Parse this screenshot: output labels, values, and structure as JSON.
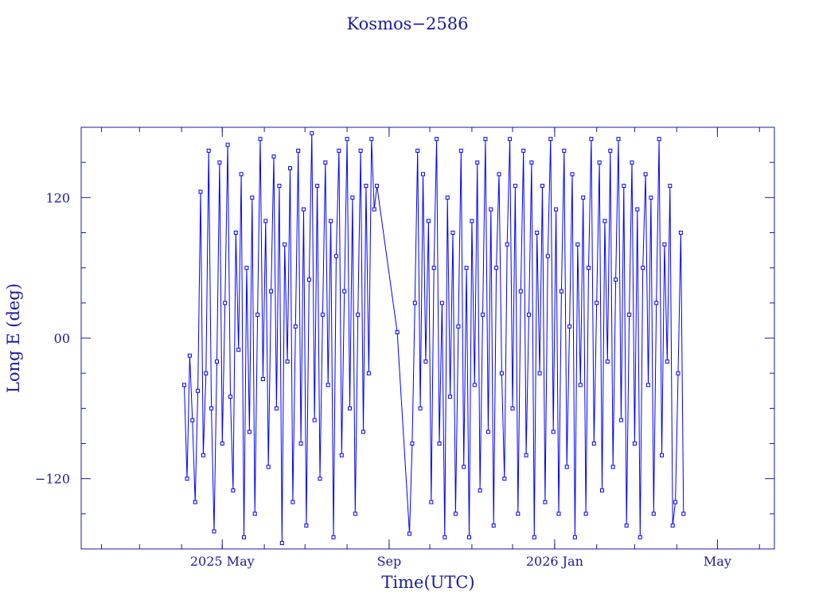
{
  "chart_data": {
    "type": "line",
    "title": "Kosmos−2586",
    "xlabel": "Time(UTC)",
    "ylabel": "Long E (deg)",
    "x_unit": "date",
    "xlim": [
      "2025-01-17",
      "2026-06-12"
    ],
    "ylim": [
      -180,
      180
    ],
    "x_ticks": [
      {
        "date": "2025-05-01",
        "label": "2025 May"
      },
      {
        "date": "2025-09-01",
        "label": "Sep"
      },
      {
        "date": "2026-01-01",
        "label": "2026 Jan"
      },
      {
        "date": "2026-05-01",
        "label": "May"
      }
    ],
    "y_ticks": [
      {
        "value": 120,
        "label": "120"
      },
      {
        "value": 0,
        "label": "00"
      },
      {
        "value": -120,
        "label": "−120"
      }
    ],
    "grid": false,
    "legend": "none",
    "colors": {
      "series": "#0000ff",
      "axes": "#1a1a9c",
      "text": "#1a1a9c"
    },
    "series": [
      {
        "marker": "square",
        "x": [
          "2025-04-03",
          "2025-04-05",
          "2025-04-07",
          "2025-04-09",
          "2025-04-11",
          "2025-04-13",
          "2025-04-15",
          "2025-04-17",
          "2025-04-19",
          "2025-04-21",
          "2025-04-23",
          "2025-04-25",
          "2025-04-27",
          "2025-04-29",
          "2025-05-01",
          "2025-05-03",
          "2025-05-05",
          "2025-05-07",
          "2025-05-09",
          "2025-05-11",
          "2025-05-13",
          "2025-05-15",
          "2025-05-17",
          "2025-05-19",
          "2025-05-21",
          "2025-05-23",
          "2025-05-25",
          "2025-05-27",
          "2025-05-29",
          "2025-05-31",
          "2025-06-02",
          "2025-06-04",
          "2025-06-06",
          "2025-06-08",
          "2025-06-10",
          "2025-06-12",
          "2025-06-14",
          "2025-06-16",
          "2025-06-18",
          "2025-06-20",
          "2025-06-22",
          "2025-06-24",
          "2025-06-26",
          "2025-06-28",
          "2025-06-30",
          "2025-07-02",
          "2025-07-04",
          "2025-07-06",
          "2025-07-08",
          "2025-07-10",
          "2025-07-12",
          "2025-07-14",
          "2025-07-16",
          "2025-07-18",
          "2025-07-20",
          "2025-07-22",
          "2025-07-24",
          "2025-07-26",
          "2025-07-28",
          "2025-07-30",
          "2025-08-01",
          "2025-08-03",
          "2025-08-05",
          "2025-08-07",
          "2025-08-09",
          "2025-08-11",
          "2025-08-13",
          "2025-08-15",
          "2025-08-17",
          "2025-08-19",
          "2025-08-21",
          "2025-08-23",
          "2025-09-07",
          "2025-09-16",
          "2025-09-18",
          "2025-09-20",
          "2025-09-22",
          "2025-09-24",
          "2025-09-26",
          "2025-09-28",
          "2025-09-30",
          "2025-10-02",
          "2025-10-04",
          "2025-10-06",
          "2025-10-08",
          "2025-10-10",
          "2025-10-12",
          "2025-10-14",
          "2025-10-16",
          "2025-10-18",
          "2025-10-20",
          "2025-10-22",
          "2025-10-24",
          "2025-10-26",
          "2025-10-28",
          "2025-10-30",
          "2025-11-01",
          "2025-11-03",
          "2025-11-05",
          "2025-11-07",
          "2025-11-09",
          "2025-11-11",
          "2025-11-13",
          "2025-11-15",
          "2025-11-17",
          "2025-11-19",
          "2025-11-21",
          "2025-11-23",
          "2025-11-25",
          "2025-11-27",
          "2025-11-29",
          "2025-12-01",
          "2025-12-03",
          "2025-12-05",
          "2025-12-07",
          "2025-12-09",
          "2025-12-11",
          "2025-12-13",
          "2025-12-15",
          "2025-12-17",
          "2025-12-19",
          "2025-12-21",
          "2025-12-23",
          "2025-12-25",
          "2025-12-27",
          "2025-12-29",
          "2025-12-31",
          "2026-01-02",
          "2026-01-04",
          "2026-01-06",
          "2026-01-08",
          "2026-01-10",
          "2026-01-12",
          "2026-01-14",
          "2026-01-16",
          "2026-01-18",
          "2026-01-20",
          "2026-01-22",
          "2026-01-24",
          "2026-01-26",
          "2026-01-28",
          "2026-01-30",
          "2026-02-01",
          "2026-02-03",
          "2026-02-05",
          "2026-02-07",
          "2026-02-09",
          "2026-02-11",
          "2026-02-13",
          "2026-02-15",
          "2026-02-17",
          "2026-02-19",
          "2026-02-21",
          "2026-02-23",
          "2026-02-25",
          "2026-02-27",
          "2026-03-01",
          "2026-03-03",
          "2026-03-05",
          "2026-03-07",
          "2026-03-09",
          "2026-03-11",
          "2026-03-13",
          "2026-03-15",
          "2026-03-17",
          "2026-03-19",
          "2026-03-21",
          "2026-03-23",
          "2026-03-25",
          "2026-03-27",
          "2026-03-29",
          "2026-03-31",
          "2026-04-02",
          "2026-04-04",
          "2026-04-06"
        ],
        "y": [
          -40,
          -120,
          -15,
          -70,
          -140,
          -45,
          125,
          -100,
          -30,
          160,
          -60,
          -165,
          -20,
          150,
          -90,
          30,
          165,
          -50,
          -130,
          90,
          -10,
          140,
          -170,
          60,
          -80,
          120,
          -150,
          20,
          170,
          -35,
          100,
          -110,
          40,
          155,
          -60,
          130,
          -175,
          80,
          -20,
          145,
          -140,
          10,
          160,
          -90,
          110,
          -160,
          50,
          175,
          -70,
          130,
          -120,
          20,
          150,
          -40,
          100,
          -170,
          70,
          160,
          -100,
          40,
          170,
          -60,
          120,
          -150,
          20,
          160,
          -80,
          130,
          -30,
          170,
          110,
          130,
          5,
          -167,
          -90,
          30,
          160,
          -60,
          140,
          -20,
          100,
          -140,
          60,
          170,
          -90,
          30,
          -170,
          120,
          -50,
          90,
          -150,
          10,
          160,
          -110,
          60,
          -170,
          100,
          -40,
          150,
          -130,
          20,
          170,
          -80,
          110,
          -160,
          60,
          140,
          -30,
          -120,
          80,
          170,
          -60,
          130,
          -150,
          40,
          160,
          -100,
          20,
          150,
          -170,
          90,
          -30,
          130,
          -140,
          70,
          170,
          -80,
          110,
          -150,
          40,
          160,
          -110,
          10,
          140,
          -170,
          80,
          -40,
          120,
          -150,
          60,
          170,
          -90,
          30,
          150,
          -130,
          100,
          -20,
          160,
          -110,
          50,
          170,
          -70,
          130,
          -160,
          20,
          150,
          -90,
          110,
          -170,
          60,
          140,
          -40,
          120,
          -150,
          30,
          170,
          -100,
          80,
          -20,
          130,
          -160,
          -140,
          -30,
          90,
          -150
        ]
      }
    ]
  }
}
